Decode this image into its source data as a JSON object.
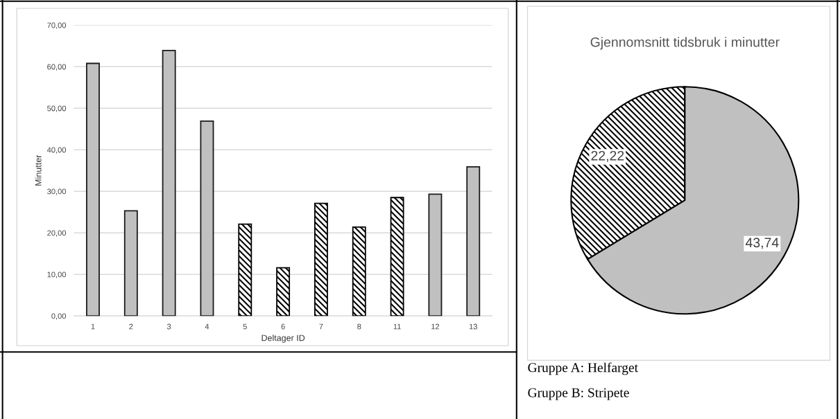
{
  "chart_data": [
    {
      "type": "bar",
      "xlabel": "Deltager ID",
      "ylabel": "Minutter",
      "categories": [
        "1",
        "2",
        "3",
        "4",
        "5",
        "6",
        "7",
        "8",
        "11",
        "12",
        "13"
      ],
      "series": [
        {
          "color": "#c0c0c0",
          "values": [
            60.8,
            25.3,
            63.9,
            46.9,
            null,
            null,
            null,
            null,
            null,
            29.3,
            35.9
          ]
        },
        {
          "color": "#000000",
          "values": [
            null,
            null,
            null,
            null,
            22.1,
            11.6,
            27.1,
            21.4,
            28.5,
            null,
            null
          ]
        }
      ],
      "ylim": [
        0,
        70
      ],
      "yticks": [
        {
          "value": 0,
          "label": "0,00"
        },
        {
          "value": 10,
          "label": "10,00"
        },
        {
          "value": 20,
          "label": "20,00"
        },
        {
          "value": 30,
          "label": "30,00"
        },
        {
          "value": 40,
          "label": "40,00"
        },
        {
          "value": 50,
          "label": "50,00"
        },
        {
          "value": 60,
          "label": "60,00"
        },
        {
          "value": 70,
          "label": "70,00"
        }
      ],
      "grid": "y"
    },
    {
      "type": "pie",
      "title": "Gjennomsnitt tidsbruk i minutter",
      "categories": [
        null,
        null
      ],
      "values": [
        22.22,
        43.74
      ],
      "colors": [
        "#000000",
        "#c0c0c0"
      ],
      "value_labels": [
        "22,22",
        "43,74"
      ],
      "annotations": [
        "Gruppe A: Helfarget",
        "Gruppe B: Stripete"
      ]
    }
  ]
}
